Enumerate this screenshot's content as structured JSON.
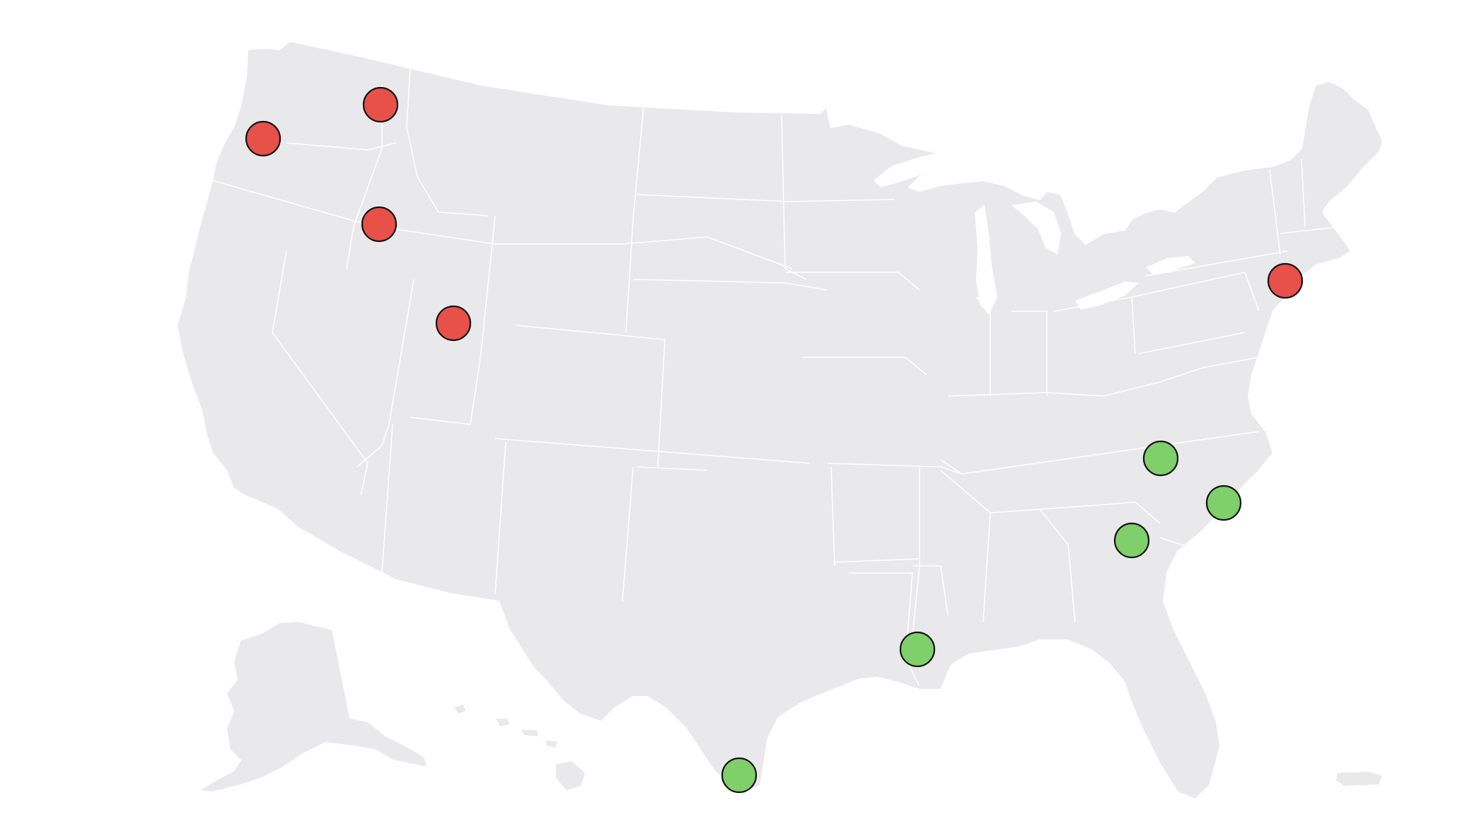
{
  "map": {
    "region": "United States",
    "colors": {
      "land": "#e9e9eb",
      "borders": "#ffffff",
      "background": "#ffffff",
      "marker_outline": "#111111"
    },
    "marker_categories": [
      {
        "id": "red",
        "color": "#e8504a"
      },
      {
        "id": "green",
        "color": "#7fcf6a"
      }
    ],
    "markers": [
      {
        "id": "seattle-area",
        "category": "red"
      },
      {
        "id": "portland-area",
        "category": "red"
      },
      {
        "id": "boise-area",
        "category": "red"
      },
      {
        "id": "salt-lake-area",
        "category": "red"
      },
      {
        "id": "new-york-area",
        "category": "red"
      },
      {
        "id": "north-carolina-inland",
        "category": "green"
      },
      {
        "id": "north-carolina-coast",
        "category": "green"
      },
      {
        "id": "south-carolina",
        "category": "green"
      },
      {
        "id": "louisiana",
        "category": "green"
      },
      {
        "id": "south-texas",
        "category": "green"
      }
    ]
  }
}
